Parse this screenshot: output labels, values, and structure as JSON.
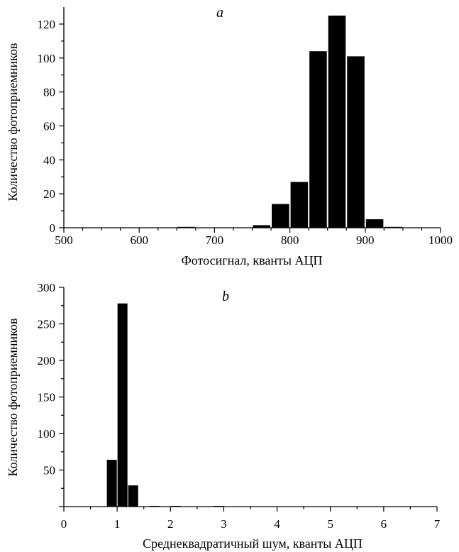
{
  "chart_data": [
    {
      "type": "bar",
      "panel_label": "a",
      "xlabel": "Фотосигнал, кванты АЦП",
      "ylabel": "Количество фотоприемников",
      "xlim": [
        500,
        1000
      ],
      "ylim": [
        0,
        130
      ],
      "x_ticks": [
        500,
        600,
        700,
        800,
        900,
        1000
      ],
      "y_ticks": [
        0,
        20,
        40,
        60,
        80,
        100,
        120
      ],
      "bin_width": 25,
      "bars": [
        {
          "x": 662.5,
          "value": 0.5
        },
        {
          "x": 762.5,
          "value": 1.5
        },
        {
          "x": 787.5,
          "value": 14
        },
        {
          "x": 812.5,
          "value": 27
        },
        {
          "x": 837.5,
          "value": 104
        },
        {
          "x": 862.5,
          "value": 125
        },
        {
          "x": 887.5,
          "value": 101
        },
        {
          "x": 912.5,
          "value": 5
        },
        {
          "x": 937.5,
          "value": 0.5
        }
      ],
      "bar_color": "#000000"
    },
    {
      "type": "bar",
      "panel_label": "b",
      "xlabel": "Среднеквадратичный шум, кванты АЦП",
      "ylabel": "Количество фотоприемников",
      "xlim": [
        0,
        7
      ],
      "ylim": [
        0,
        300
      ],
      "x_ticks": [
        0,
        1,
        2,
        3,
        4,
        5,
        6,
        7
      ],
      "y_ticks": [
        50,
        100,
        150,
        200,
        250,
        300
      ],
      "bin_width": 0.2,
      "bars": [
        {
          "x": 0.9,
          "value": 64
        },
        {
          "x": 1.1,
          "value": 278
        },
        {
          "x": 1.3,
          "value": 29
        },
        {
          "x": 1.7,
          "value": 1
        },
        {
          "x": 2.1,
          "value": 1
        },
        {
          "x": 2.9,
          "value": 1
        }
      ],
      "bar_color": "#000000"
    }
  ]
}
